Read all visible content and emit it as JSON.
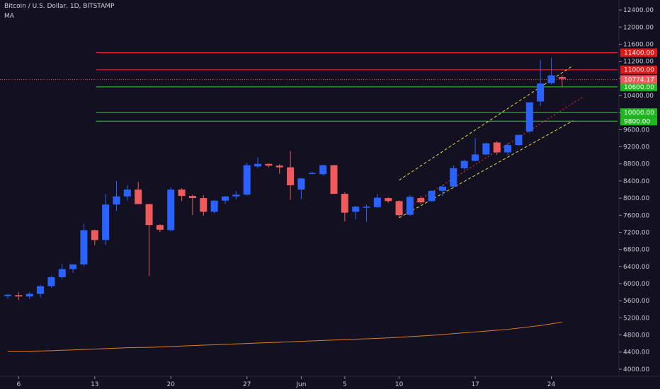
{
  "header": {
    "title": "Bitcoin / U.S. Dollar, 1D, BITSTAMP",
    "indicator": "MA"
  },
  "colors": {
    "background": "#131022",
    "up": "#2962ff",
    "down": "#ef5b5b",
    "resistance": "#ff2a2a",
    "support": "#22dd22",
    "channel": "#e6d83a",
    "midline": "#ff3333",
    "ma": "#e07a1f",
    "axis_text": "#c8cad2",
    "last_price": "#ef5b5b"
  },
  "chart_data": {
    "type": "candlestick",
    "ylim": [
      3800,
      12600
    ],
    "yticks": [
      4000,
      4400,
      4800,
      5200,
      5600,
      6000,
      6400,
      6800,
      7200,
      7600,
      8000,
      8400,
      8800,
      9200,
      9600,
      10000,
      10400,
      10800,
      11200,
      11600,
      12000,
      12400
    ],
    "ytick_labels": [
      "4000.00",
      "4400.00",
      "4800.00",
      "5200.00",
      "5600.00",
      "6000.00",
      "6400.00",
      "6800.00",
      "7200.00",
      "7600.00",
      "8000.00",
      "8400.00",
      "8800.00",
      "9200.00",
      "9600.00",
      "10000.00",
      "10400.00",
      "10800.00",
      "11200.00",
      "11600.00",
      "12000.00",
      "12400.00"
    ],
    "xticks": [
      {
        "label": "6",
        "index": 1
      },
      {
        "label": "13",
        "index": 8
      },
      {
        "label": "20",
        "index": 15
      },
      {
        "label": "27",
        "index": 22
      },
      {
        "label": "Jun",
        "index": 27
      },
      {
        "label": "5",
        "index": 31
      },
      {
        "label": "10",
        "index": 36
      },
      {
        "label": "17",
        "index": 43
      },
      {
        "label": "24",
        "index": 50
      }
    ],
    "candles": [
      {
        "o": 5710,
        "h": 5760,
        "l": 5650,
        "c": 5740
      },
      {
        "o": 5730,
        "h": 5800,
        "l": 5610,
        "c": 5700
      },
      {
        "o": 5700,
        "h": 5800,
        "l": 5640,
        "c": 5760
      },
      {
        "o": 5760,
        "h": 5970,
        "l": 5680,
        "c": 5940
      },
      {
        "o": 5940,
        "h": 6180,
        "l": 5900,
        "c": 6150
      },
      {
        "o": 6150,
        "h": 6460,
        "l": 6100,
        "c": 6340
      },
      {
        "o": 6340,
        "h": 6440,
        "l": 6250,
        "c": 6450
      },
      {
        "o": 6450,
        "h": 7400,
        "l": 6400,
        "c": 7250
      },
      {
        "o": 7250,
        "h": 7260,
        "l": 6900,
        "c": 7020
      },
      {
        "o": 7020,
        "h": 8100,
        "l": 6900,
        "c": 7850
      },
      {
        "o": 7850,
        "h": 8400,
        "l": 7700,
        "c": 8040
      },
      {
        "o": 8040,
        "h": 8300,
        "l": 7950,
        "c": 8200
      },
      {
        "o": 8200,
        "h": 8380,
        "l": 7900,
        "c": 7860
      },
      {
        "o": 7860,
        "h": 7870,
        "l": 6180,
        "c": 7370
      },
      {
        "o": 7370,
        "h": 7390,
        "l": 7210,
        "c": 7260
      },
      {
        "o": 7250,
        "h": 8260,
        "l": 7220,
        "c": 8200
      },
      {
        "o": 8200,
        "h": 8230,
        "l": 7930,
        "c": 8050
      },
      {
        "o": 8050,
        "h": 8080,
        "l": 7600,
        "c": 8000
      },
      {
        "o": 8000,
        "h": 8070,
        "l": 7590,
        "c": 7680
      },
      {
        "o": 7680,
        "h": 7950,
        "l": 7640,
        "c": 7940
      },
      {
        "o": 7940,
        "h": 8050,
        "l": 7860,
        "c": 8040
      },
      {
        "o": 8040,
        "h": 8160,
        "l": 7970,
        "c": 8080
      },
      {
        "o": 8080,
        "h": 8820,
        "l": 8060,
        "c": 8770
      },
      {
        "o": 8740,
        "h": 8950,
        "l": 8700,
        "c": 8800
      },
      {
        "o": 8800,
        "h": 8810,
        "l": 8720,
        "c": 8760
      },
      {
        "o": 8760,
        "h": 8790,
        "l": 8570,
        "c": 8720
      },
      {
        "o": 8720,
        "h": 9100,
        "l": 7960,
        "c": 8300
      },
      {
        "o": 8200,
        "h": 8470,
        "l": 7980,
        "c": 8460
      },
      {
        "o": 8580,
        "h": 8620,
        "l": 8560,
        "c": 8590
      },
      {
        "o": 8560,
        "h": 8780,
        "l": 8520,
        "c": 8770
      },
      {
        "o": 8770,
        "h": 8780,
        "l": 8100,
        "c": 8100
      },
      {
        "o": 8100,
        "h": 8140,
        "l": 7450,
        "c": 7660
      },
      {
        "o": 7680,
        "h": 7820,
        "l": 7500,
        "c": 7800
      },
      {
        "o": 7800,
        "h": 7850,
        "l": 7450,
        "c": 7800
      },
      {
        "o": 7790,
        "h": 8100,
        "l": 7770,
        "c": 8010
      },
      {
        "o": 8000,
        "h": 8020,
        "l": 7890,
        "c": 7930
      },
      {
        "o": 7930,
        "h": 7950,
        "l": 7540,
        "c": 7600
      },
      {
        "o": 7610,
        "h": 8070,
        "l": 7580,
        "c": 8030
      },
      {
        "o": 8000,
        "h": 8050,
        "l": 7870,
        "c": 7900
      },
      {
        "o": 7930,
        "h": 8180,
        "l": 7910,
        "c": 8170
      },
      {
        "o": 8170,
        "h": 8310,
        "l": 8050,
        "c": 8270
      },
      {
        "o": 8270,
        "h": 8760,
        "l": 8230,
        "c": 8700
      },
      {
        "o": 8700,
        "h": 8900,
        "l": 8660,
        "c": 8870
      },
      {
        "o": 8870,
        "h": 9400,
        "l": 8860,
        "c": 9020
      },
      {
        "o": 9020,
        "h": 9300,
        "l": 9000,
        "c": 9280
      },
      {
        "o": 9300,
        "h": 9330,
        "l": 9010,
        "c": 9070
      },
      {
        "o": 9070,
        "h": 9290,
        "l": 9000,
        "c": 9240
      },
      {
        "o": 9240,
        "h": 9480,
        "l": 9220,
        "c": 9480
      },
      {
        "o": 9560,
        "h": 10240,
        "l": 9520,
        "c": 10240
      },
      {
        "o": 10260,
        "h": 11230,
        "l": 10150,
        "c": 10680
      },
      {
        "o": 10690,
        "h": 11280,
        "l": 10660,
        "c": 10870
      },
      {
        "o": 10830,
        "h": 10870,
        "l": 10600,
        "c": 10790
      }
    ],
    "moving_average": [
      4420,
      4420,
      4420,
      4425,
      4430,
      4440,
      4450,
      4460,
      4470,
      4480,
      4490,
      4500,
      4505,
      4510,
      4520,
      4530,
      4540,
      4550,
      4560,
      4570,
      4580,
      4590,
      4600,
      4610,
      4620,
      4630,
      4640,
      4650,
      4660,
      4670,
      4680,
      4690,
      4700,
      4710,
      4720,
      4730,
      4745,
      4760,
      4775,
      4790,
      4810,
      4830,
      4850,
      4870,
      4890,
      4910,
      4930,
      4960,
      4990,
      5020,
      5060,
      5100
    ],
    "levels": [
      {
        "value": 11400,
        "label": "11400.00",
        "kind": "resistance"
      },
      {
        "value": 11000,
        "label": "11000.00",
        "kind": "resistance"
      },
      {
        "value": 10600,
        "label": "10600.00",
        "kind": "support"
      },
      {
        "value": 10000,
        "label": "10000.00",
        "kind": "support"
      },
      {
        "value": 9800,
        "label": "9800.00",
        "kind": "support"
      }
    ],
    "last_price": {
      "value": 10774.17,
      "label": "10774.17"
    },
    "channel": {
      "upper": {
        "from": [
          36,
          8420
        ],
        "to": [
          52,
          11100
        ]
      },
      "middle": {
        "from": [
          37,
          7820
        ],
        "to": [
          53,
          10380
        ]
      },
      "lower": {
        "from": [
          36,
          7540
        ],
        "to": [
          52,
          9810
        ]
      }
    }
  }
}
